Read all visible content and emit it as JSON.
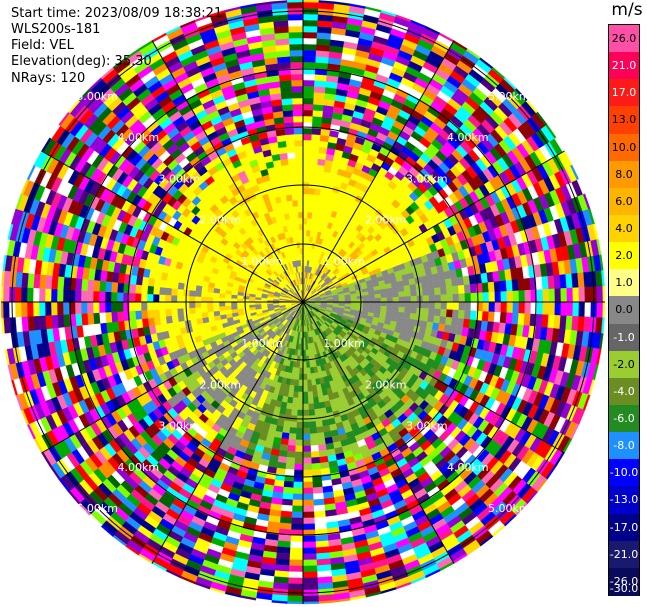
{
  "header": {
    "start_time": "Start time: 2023/08/09 18:38:21",
    "station": "WLS200s-181",
    "field": "Field: VEL",
    "elevation": "Elevation(deg): 35.30",
    "nrays": "NRays: 120"
  },
  "colorbar": {
    "unit": "m/s",
    "labels": [
      "26.0",
      "21.0",
      "17.0",
      "13.0",
      "10.0",
      "8.0",
      "6.0",
      "4.0",
      "2.0",
      "1.0",
      "0.0",
      "-1.0",
      "-2.0",
      "-4.0",
      "-6.0",
      "-8.0",
      "-10.0",
      "-13.0",
      "-17.0",
      "-21.0",
      "-26.0",
      "-30.0"
    ],
    "colors": [
      "#ff4fa6",
      "#ff0058",
      "#ff1a1a",
      "#ff4000",
      "#ff6a00",
      "#ff9a00",
      "#ffb400",
      "#ffd200",
      "#ffff00",
      "#ffff88",
      "#888888",
      "#666666",
      "#9acd32",
      "#6b8e23",
      "#228b22",
      "#1e90ff",
      "#0000ff",
      "#0000cd",
      "#00008b",
      "#191970",
      "#0a0a5a"
    ]
  },
  "range_labels": [
    "1.00km",
    "2.00km",
    "3.00km",
    "4.00km",
    "5.00km"
  ]
}
